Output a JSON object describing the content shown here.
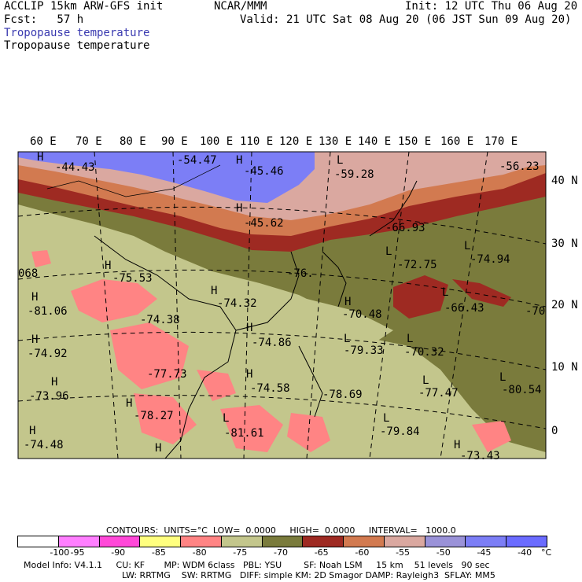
{
  "header": {
    "model": "ACCLIP 15km ARW-GFS init",
    "forecast": "Fcst:   57 h",
    "org": "NCAR/MMM",
    "init": "Init: 12 UTC Thu 06 Aug 20",
    "valid": "Valid: 21 UTC Sat 08 Aug 20 (06 JST Sun 09 Aug 20)",
    "field1": "Tropopause temperature",
    "field2": "Tropopause temperature"
  },
  "lon_labels": [
    "60 E",
    "70 E",
    "80 E",
    "90 E",
    "100 E",
    "110 E",
    "120 E",
    "130 E",
    "140 E",
    "150 E",
    "160 E",
    "170 E"
  ],
  "lat_labels": [
    "40 N",
    "30 N",
    "20 N",
    "10 N",
    "0"
  ],
  "map_labels": {
    "h1": "H",
    "v1": "-44.43",
    "v2": "-54.47",
    "h3": "H",
    "v3": "-45.46",
    "l1": "L",
    "v4": "-59.28",
    "v5": "-56.23",
    "h4": "H",
    "v6": "-45.62",
    "v7": "-66.93",
    "l2": "L",
    "v8": "-72.75",
    "l3": "L",
    "v9": "-74.94",
    "v10": "068",
    "h5": "H",
    "v11": "-75.53",
    "v12": "-76.",
    "h6": "H",
    "v13": "-74.32",
    "l4": "L",
    "v14": "-66.43",
    "h7": "H",
    "v15": "-81.06",
    "v16": "-74.38",
    "h8": "H",
    "v17": "-70.48",
    "v18": "-70",
    "h9": "H",
    "v19": "-74.86",
    "l5": "L",
    "v20": "-79.33",
    "l6": "L",
    "v21": "-70.32",
    "h10": "H",
    "v22": "-74.92",
    "v23": "-77.73",
    "h11": "H",
    "v24": "-74.58",
    "v25": "-78.69",
    "l7": "L",
    "v26": "-77.47",
    "l8": "L",
    "v27": "-80.54",
    "h12": "H",
    "v28": "-73.96",
    "h13": "H",
    "v29": "-78.27",
    "l9": "L",
    "v30": "-81.61",
    "l10": "L",
    "v31": "-79.84",
    "h14": "H",
    "v32": "-74.48",
    "h15": "H",
    "h16": "H",
    "v33": "-73.43"
  },
  "legend": {
    "contours": "CONTOURS:  UNITS=°C  LOW=  0.0000     HIGH=  0.0000     INTERVAL=   1000.0",
    "bins": [
      {
        "color": "#ffffff",
        "label": "-100"
      },
      {
        "color": "#ff7fff",
        "label": "-95"
      },
      {
        "color": "#ff48d8",
        "label": "-90"
      },
      {
        "color": "#ffff7f",
        "label": "-85"
      },
      {
        "color": "#ff8484",
        "label": "-80"
      },
      {
        "color": "#c3c68c",
        "label": "-75"
      },
      {
        "color": "#7a7b3c",
        "label": "-70"
      },
      {
        "color": "#9e2a22",
        "label": "-65"
      },
      {
        "color": "#d27a50",
        "label": "-60"
      },
      {
        "color": "#daa8a0",
        "label": "-55"
      },
      {
        "color": "#9a92d8",
        "label": "-50"
      },
      {
        "color": "#7c7ef6",
        "label": "-45"
      },
      {
        "color": "#6b6cff",
        "label": "-40"
      }
    ],
    "unit": "°C",
    "info1": "Model Info: V4.1.1     CU: KF       MP: WDM 6class   PBL: YSU        SF: Noah LSM     15 km    51 levels   90 sec",
    "info2": "LW: RRTMG    SW: RRTMG   DIFF: simple KM: 2D Smagor DAMP: Rayleigh3  SFLAY: MM5"
  },
  "colors": {
    "warm_blue": "#7c7ef6",
    "pink_light": "#daa8a0",
    "orange": "#d27a50",
    "dark_red": "#9e2a22",
    "olive": "#7a7b3c",
    "khaki": "#c3c68c",
    "salmon": "#ff8484"
  }
}
